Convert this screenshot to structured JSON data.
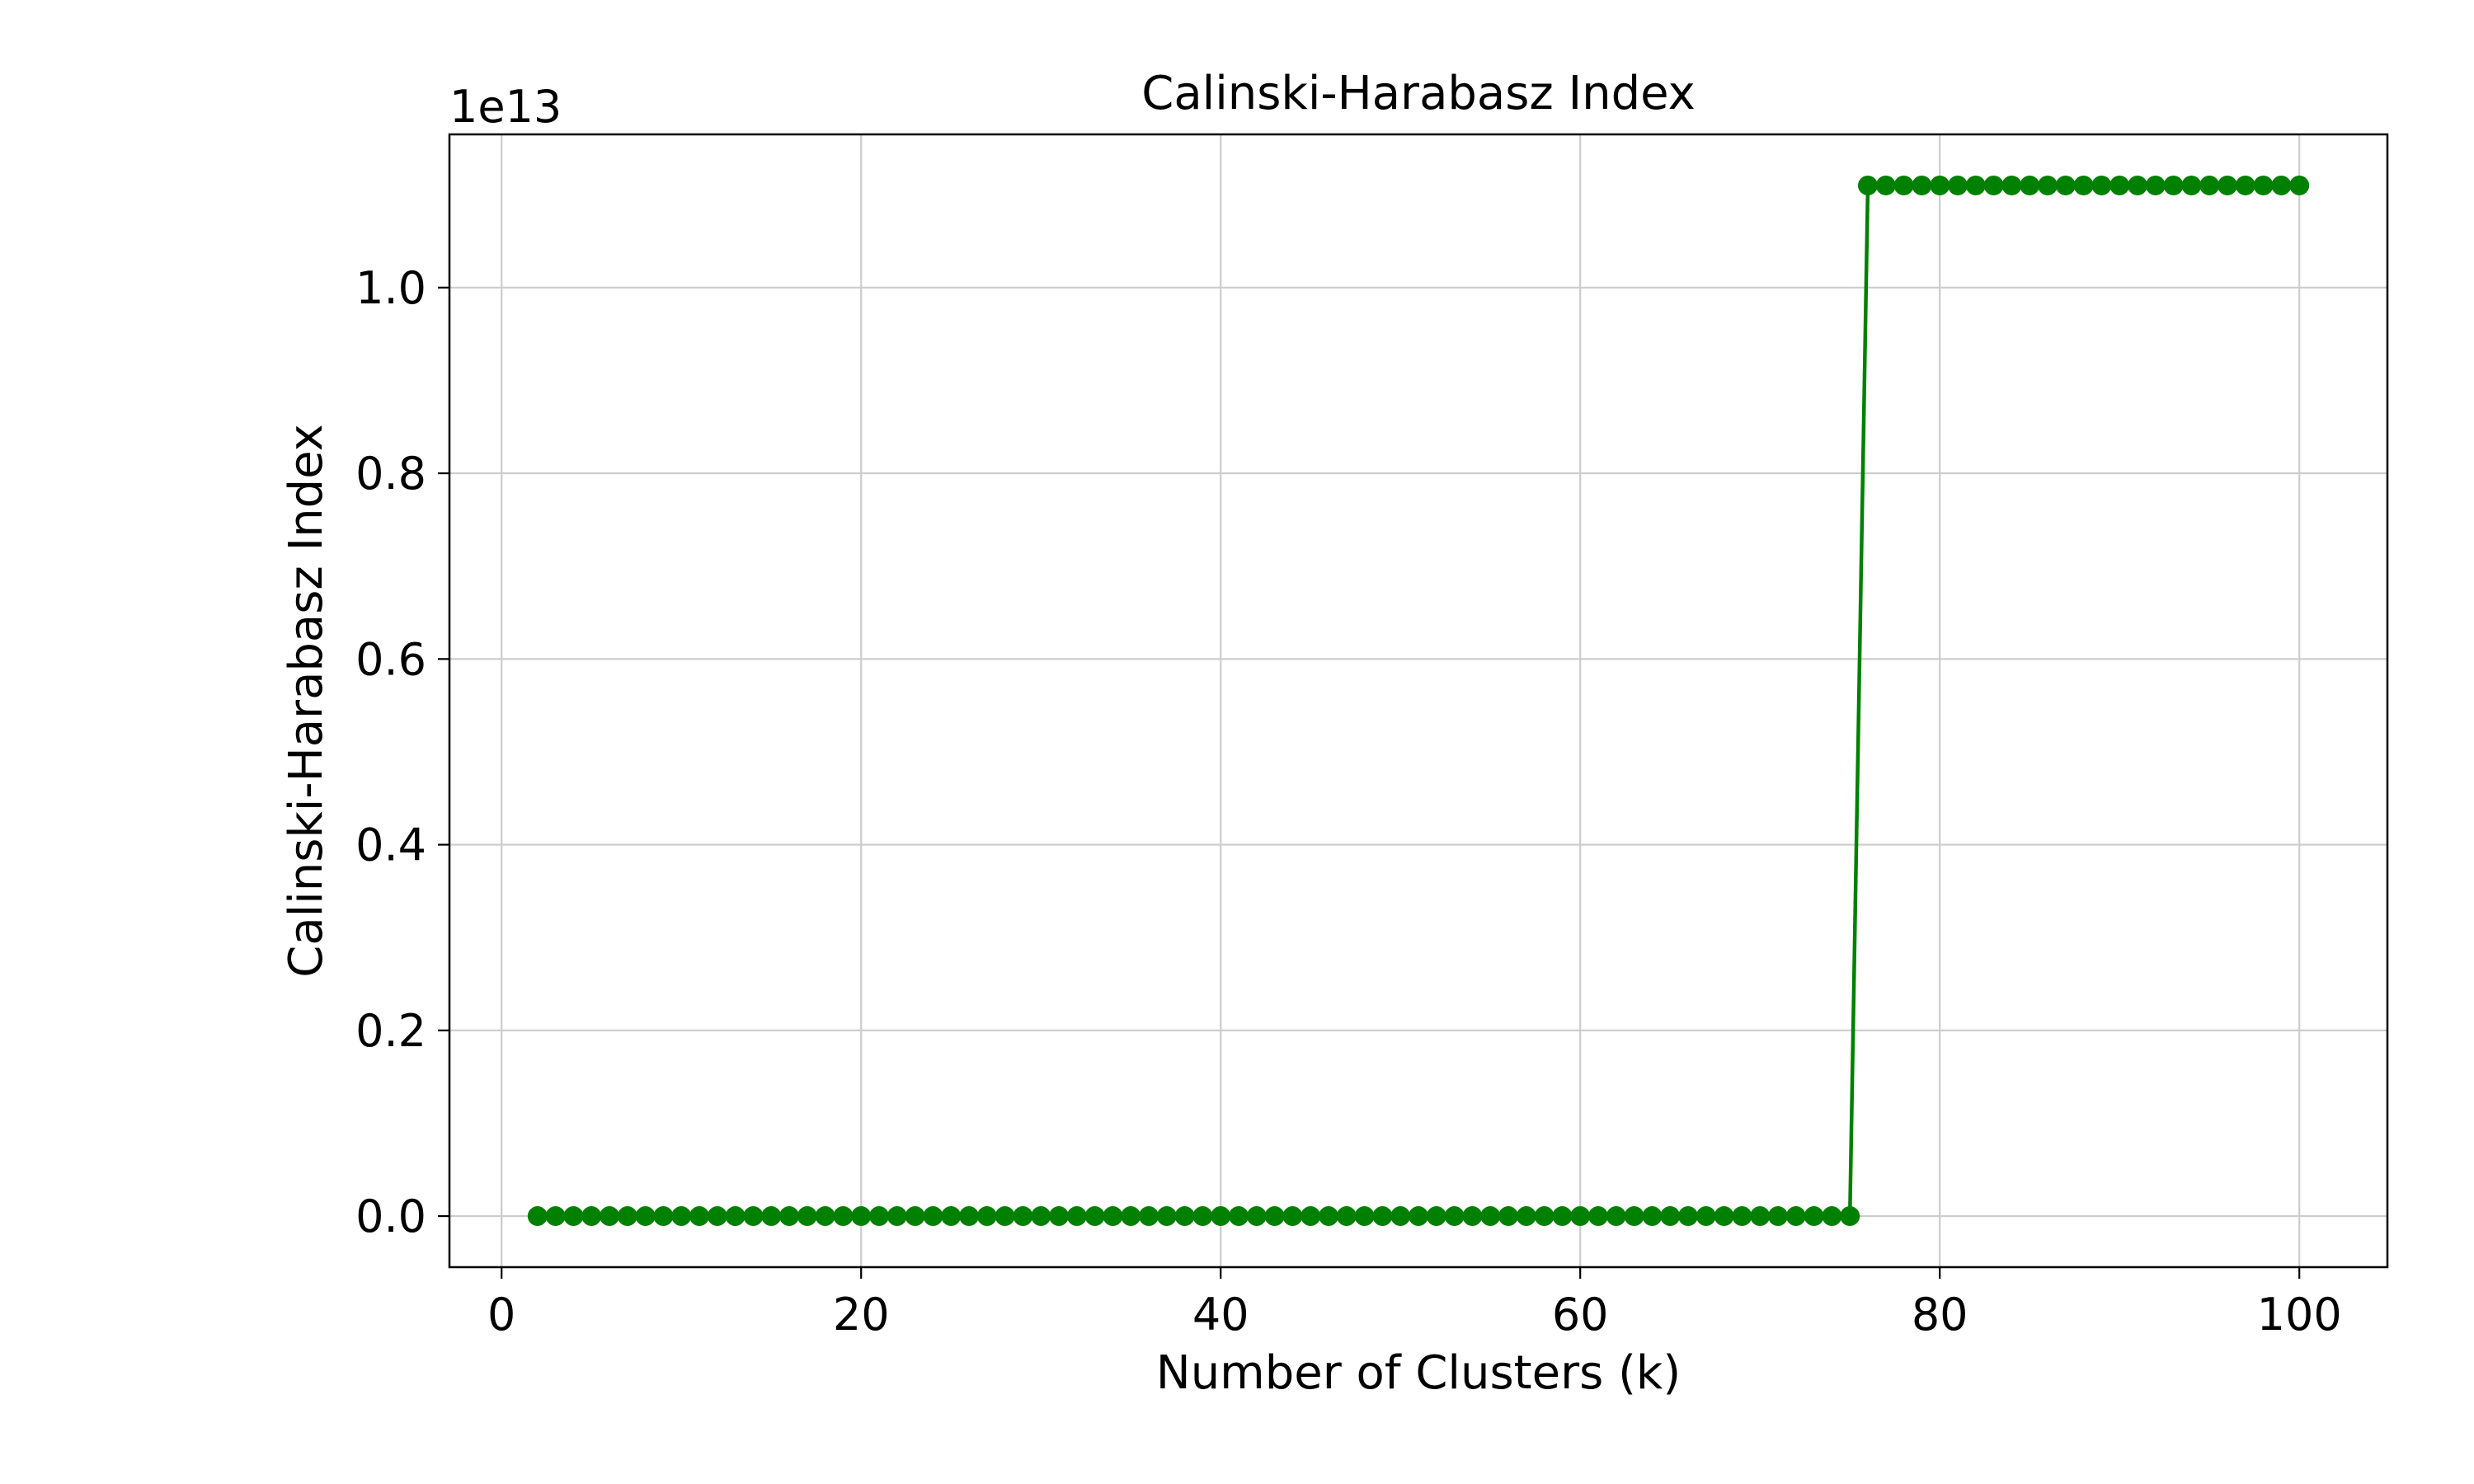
{
  "chart_data": {
    "type": "line",
    "title": "Calinski-Harabasz Index",
    "xlabel": "Number of Clusters (k)",
    "ylabel": "Calinski-Harabasz Index",
    "y_offset_label": "1e13",
    "xlim": [
      -2.9,
      104.9
    ],
    "ylim": [
      -0.055,
      1.165
    ],
    "y_scale_factor": 10000000000000.0,
    "x_ticks": [
      0,
      20,
      40,
      60,
      80,
      100
    ],
    "x_tick_labels": [
      "0",
      "20",
      "40",
      "60",
      "80",
      "100"
    ],
    "y_ticks": [
      0.0,
      0.2,
      0.4,
      0.6,
      0.8,
      1.0
    ],
    "y_tick_labels": [
      "0.0",
      "0.2",
      "0.4",
      "0.6",
      "0.8",
      "1.0"
    ],
    "grid": true,
    "legend": false,
    "colors": {
      "series": "#008000",
      "grid": "#cccccc",
      "axes": "#000000"
    },
    "series": [
      {
        "marker": "circle",
        "x": [
          2,
          3,
          4,
          5,
          6,
          7,
          8,
          9,
          10,
          11,
          12,
          13,
          14,
          15,
          16,
          17,
          18,
          19,
          20,
          21,
          22,
          23,
          24,
          25,
          26,
          27,
          28,
          29,
          30,
          31,
          32,
          33,
          34,
          35,
          36,
          37,
          38,
          39,
          40,
          41,
          42,
          43,
          44,
          45,
          46,
          47,
          48,
          49,
          50,
          51,
          52,
          53,
          54,
          55,
          56,
          57,
          58,
          59,
          60,
          61,
          62,
          63,
          64,
          65,
          66,
          67,
          68,
          69,
          70,
          71,
          72,
          73,
          74,
          75,
          76,
          77,
          78,
          79,
          80,
          81,
          82,
          83,
          84,
          85,
          86,
          87,
          88,
          89,
          90,
          91,
          92,
          93,
          94,
          95,
          96,
          97,
          98,
          99,
          100
        ],
        "y": [
          0,
          0,
          0,
          0,
          0,
          0,
          0,
          0,
          0,
          0,
          0,
          0,
          0,
          0,
          0,
          0,
          0,
          0,
          0,
          0,
          0,
          0,
          0,
          0,
          0,
          0,
          0,
          0,
          0,
          0,
          0,
          0,
          0,
          0,
          0,
          0,
          0,
          0,
          0,
          0,
          0,
          0,
          0,
          0,
          0,
          0,
          0,
          0,
          0,
          0,
          0,
          0,
          0,
          0,
          0,
          0,
          0,
          0,
          0,
          0,
          0,
          0,
          0,
          0,
          0,
          0,
          0,
          0,
          0,
          0,
          0,
          0,
          0,
          0,
          1.11,
          1.11,
          1.11,
          1.11,
          1.11,
          1.11,
          1.11,
          1.11,
          1.11,
          1.11,
          1.11,
          1.11,
          1.11,
          1.11,
          1.11,
          1.11,
          1.11,
          1.11,
          1.11,
          1.11,
          1.11,
          1.11,
          1.11,
          1.11,
          1.11
        ]
      }
    ]
  }
}
